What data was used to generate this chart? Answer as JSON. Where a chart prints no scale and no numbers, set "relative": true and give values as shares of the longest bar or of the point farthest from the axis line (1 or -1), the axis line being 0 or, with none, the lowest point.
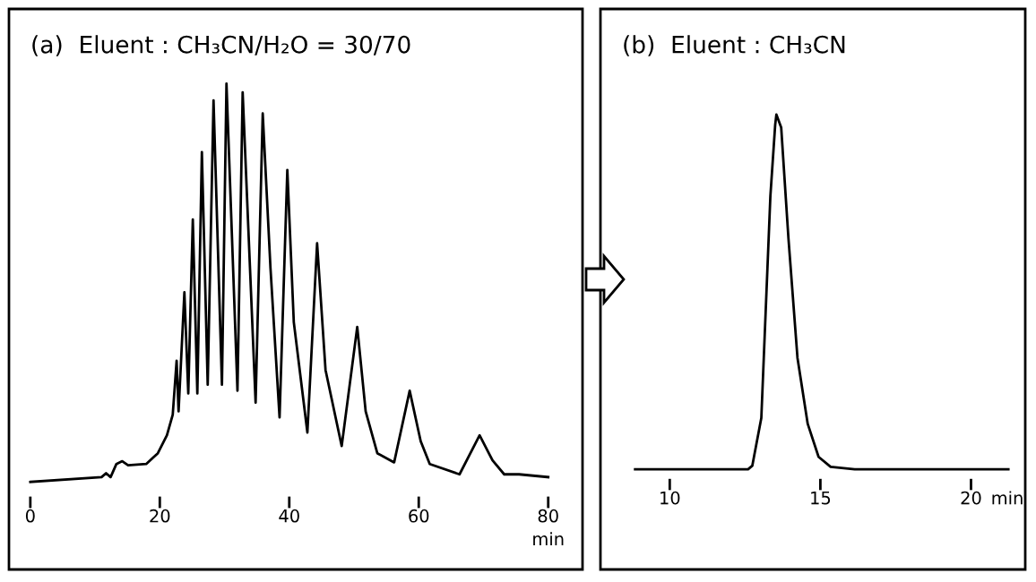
{
  "chart_data": [
    {
      "type": "line",
      "title": "(a)  Eluent : CH₃CN/H₂O = 30/70",
      "xlabel": "min",
      "relative": true,
      "xlim": [
        -3.3,
        85.3
      ],
      "xticks": [
        0,
        20,
        40,
        60,
        80
      ],
      "legend": false,
      "marker": "none",
      "line_style": "solid",
      "series": [
        {
          "color": "#000000",
          "x": [
            0,
            11,
            11.7,
            12.4,
            13.3,
            14.2,
            15.1,
            17.9,
            19.7,
            21.1,
            22.0,
            22.6,
            22.9,
            23.8,
            24.4,
            25.1,
            25.8,
            26.5,
            27.4,
            28.3,
            29.6,
            30.3,
            32.0,
            32.8,
            34.8,
            35.9,
            37.1,
            38.5,
            39.7,
            40.7,
            42.8,
            44.3,
            45.6,
            48.1,
            50.5,
            51.8,
            53.6,
            56.2,
            58.6,
            60.3,
            61.7,
            66.3,
            69.4,
            71.4,
            73.2,
            75.5,
            80
          ],
          "values": [
            0,
            0.012,
            0.022,
            0.012,
            0.045,
            0.052,
            0.042,
            0.045,
            0.072,
            0.117,
            0.169,
            0.304,
            0.177,
            0.476,
            0.222,
            0.659,
            0.222,
            0.828,
            0.244,
            0.958,
            0.244,
            1.0,
            0.229,
            0.978,
            0.199,
            0.925,
            0.536,
            0.162,
            0.783,
            0.401,
            0.124,
            0.599,
            0.281,
            0.09,
            0.389,
            0.177,
            0.072,
            0.049,
            0.229,
            0.102,
            0.045,
            0.019,
            0.117,
            0.054,
            0.019,
            0.019,
            0.012
          ]
        }
      ]
    },
    {
      "type": "line",
      "title": "(b)  Eluent : CH₃CN",
      "xlabel": "min",
      "relative": true,
      "xlim": [
        7.7,
        21.8
      ],
      "xticks": [
        10,
        15,
        20
      ],
      "legend": false,
      "marker": "none",
      "line_style": "solid",
      "series": [
        {
          "color": "#000000",
          "x": [
            8.85,
            12.6,
            12.74,
            13.04,
            13.34,
            13.5,
            13.54,
            13.7,
            13.94,
            14.24,
            14.58,
            14.94,
            15.34,
            16.14,
            21.24
          ],
          "values": [
            0,
            0,
            0.01,
            0.145,
            0.769,
            0.971,
            1.0,
            0.963,
            0.651,
            0.314,
            0.128,
            0.035,
            0.007,
            0,
            0
          ]
        }
      ]
    }
  ]
}
